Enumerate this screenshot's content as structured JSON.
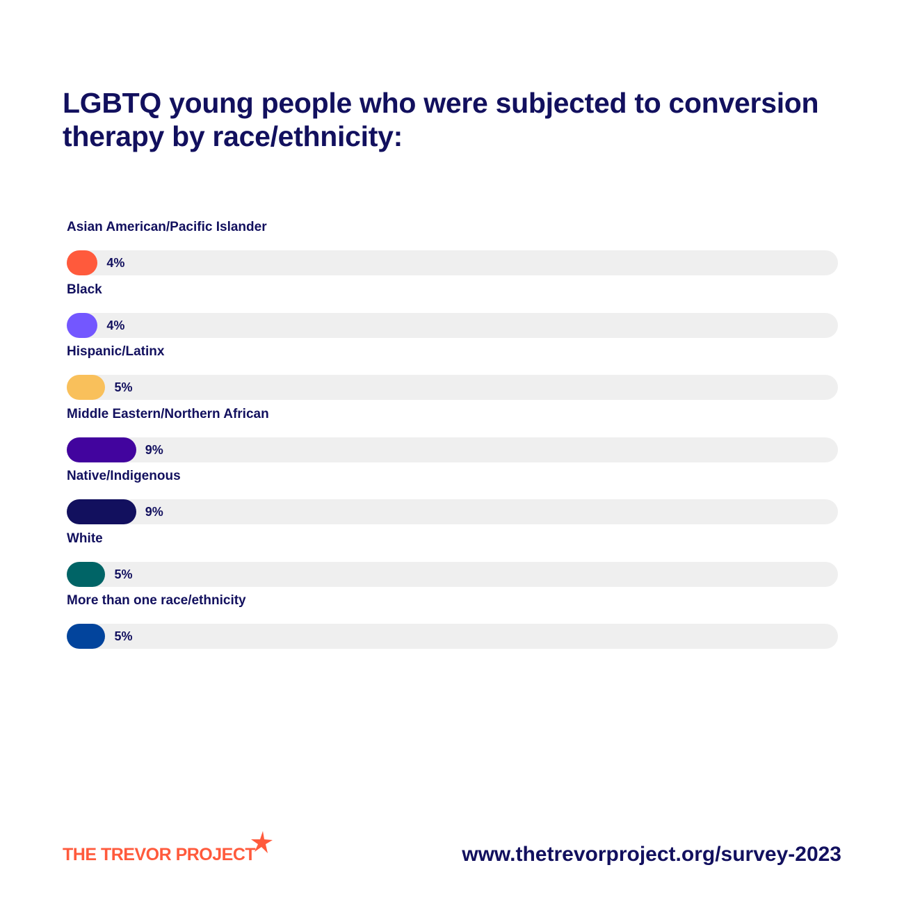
{
  "title": "LGBTQ young people who were subjected to conversion therapy by race/ethnicity:",
  "chart_data": {
    "type": "bar",
    "orientation": "horizontal",
    "xlim": [
      0,
      100
    ],
    "grid": false,
    "categories": [
      "Asian American/Pacific Islander",
      "Black",
      "Hispanic/Latinx",
      "Middle Eastern/Northern African",
      "Native/Indigenous",
      "White",
      "More than one race/ethnicity"
    ],
    "values": [
      4,
      4,
      5,
      9,
      9,
      5,
      5
    ],
    "value_labels": [
      "4%",
      "4%",
      "5%",
      "9%",
      "9%",
      "5%",
      "5%"
    ],
    "colors": [
      "#ff5a3c",
      "#7357ff",
      "#f9c05b",
      "#42049e",
      "#12105e",
      "#006466",
      "#02449c"
    ]
  },
  "footer": {
    "logo_text": "THE TREVOR PROJECT",
    "url": "www.thetrevorproject.org/survey-2023"
  },
  "theme": {
    "text_color": "#12105e",
    "track_color": "#efefef",
    "brand_color": "#ff5a3c"
  }
}
